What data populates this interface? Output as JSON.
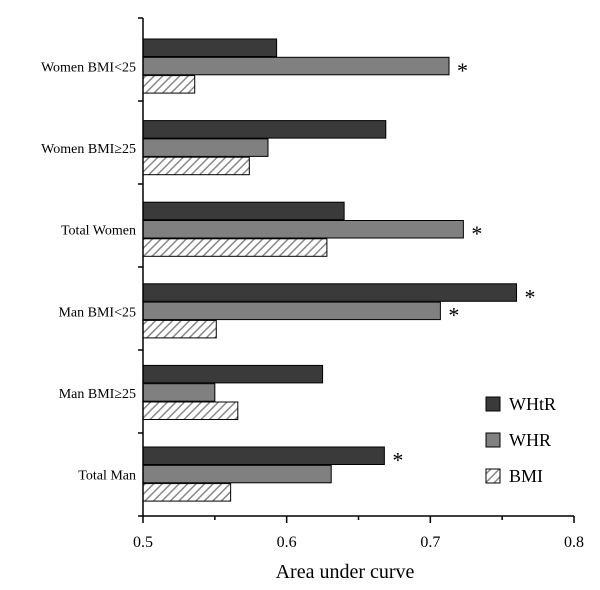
{
  "chart_data": {
    "type": "bar",
    "orientation": "horizontal",
    "categories": [
      "Women BMI<25",
      "Women BMI≥25",
      "Total Women",
      "Man BMI<25",
      "Man BMI≥25",
      "Total Man"
    ],
    "series": [
      {
        "name": "WHtR",
        "color": "#3a3a3a",
        "pattern": "solid",
        "values": [
          0.593,
          0.669,
          0.64,
          0.76,
          0.625,
          0.668
        ],
        "significant": [
          false,
          false,
          false,
          true,
          false,
          true
        ]
      },
      {
        "name": "WHR",
        "color": "#808080",
        "pattern": "solid",
        "values": [
          0.713,
          0.587,
          0.723,
          0.707,
          0.55,
          0.631
        ],
        "significant": [
          true,
          false,
          true,
          true,
          false,
          false
        ]
      },
      {
        "name": "BMI",
        "color": "#ffffff",
        "pattern": "diagonal-hatch",
        "values": [
          0.536,
          0.574,
          0.628,
          0.551,
          0.566,
          0.561
        ],
        "significant": [
          false,
          false,
          false,
          false,
          false,
          false
        ]
      }
    ],
    "xlabel": "Area under curve",
    "xlim": [
      0.5,
      0.8
    ],
    "xticks": [
      "0.5",
      "0.6",
      "0.7",
      "0.8"
    ],
    "significance_marker": "*",
    "legend_position": "lower-right",
    "grid": false
  }
}
